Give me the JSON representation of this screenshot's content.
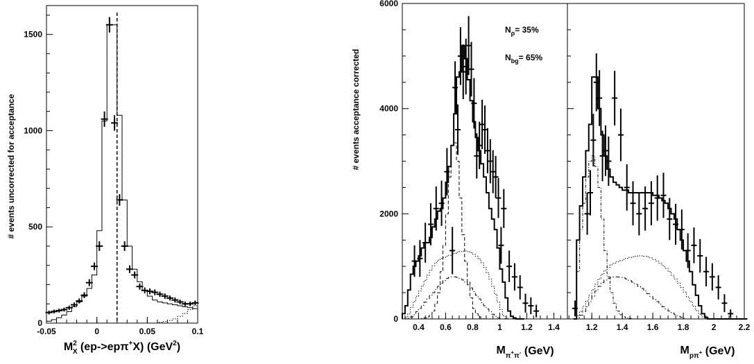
{
  "chart_data": [
    {
      "type": "histogram",
      "ylabel": "# events uncorrected for acceptance",
      "xlabel": {
        "base": "M",
        "sub": "X",
        "sup": "2",
        "process": " (ep->epπ",
        "process_sup": "+",
        "rest": "X) (GeV",
        "unit_sup": "2",
        "close": ")"
      },
      "xlim": [
        -0.05,
        0.1
      ],
      "ylim": [
        0,
        1650
      ],
      "xticks": [
        {
          "v": -0.05,
          "label": "-0.05"
        },
        {
          "v": 0,
          "label": "0"
        },
        {
          "v": 0.05,
          "label": "0.05"
        },
        {
          "v": 0.1,
          "label": "0.1"
        }
      ],
      "yticks": [
        {
          "v": 0,
          "label": "0"
        },
        {
          "v": 500,
          "label": "500"
        },
        {
          "v": 1000,
          "label": "1000"
        },
        {
          "v": 1500,
          "label": "1500"
        }
      ],
      "cut_line_x": 0.02,
      "series": [
        {
          "kind": "simulation",
          "style": "solid",
          "bin_edges": [
            -0.05,
            -0.045,
            -0.04,
            -0.035,
            -0.03,
            -0.025,
            -0.02,
            -0.015,
            -0.01,
            -0.005,
            0,
            0.005,
            0.01,
            0.015,
            0.02,
            0.025,
            0.03,
            0.035,
            0.04,
            0.045,
            0.05,
            0.055,
            0.06,
            0.065,
            0.07,
            0.075,
            0.08,
            0.085,
            0.09,
            0.095,
            0.1
          ],
          "values": [
            10,
            18,
            28,
            42,
            60,
            85,
            110,
            140,
            180,
            250,
            480,
            1050,
            1550,
            1550,
            1080,
            640,
            400,
            280,
            215,
            170,
            140,
            120,
            110,
            105,
            100,
            95,
            90,
            85,
            80,
            75
          ]
        },
        {
          "kind": "background",
          "style": "dotted",
          "bin_edges": [
            0.06,
            0.065,
            0.07,
            0.075,
            0.08,
            0.085,
            0.09,
            0.095,
            0.1
          ],
          "values": [
            4,
            8,
            14,
            22,
            35,
            50,
            70,
            90
          ]
        },
        {
          "kind": "data",
          "style": "points",
          "x": [
            -0.0475,
            -0.0425,
            -0.0375,
            -0.0325,
            -0.0275,
            -0.0225,
            -0.0175,
            -0.0125,
            -0.0075,
            -0.0025,
            0.0025,
            0.0075,
            0.0125,
            0.0175,
            0.0225,
            0.0275,
            0.0325,
            0.0375,
            0.0425,
            0.0475,
            0.0525,
            0.0575,
            0.0625,
            0.0675,
            0.0725,
            0.0775,
            0.0825,
            0.0875,
            0.0925,
            0.0975
          ],
          "y": [
            55,
            60,
            65,
            70,
            80,
            95,
            115,
            145,
            210,
            295,
            400,
            1060,
            1550,
            1040,
            640,
            400,
            280,
            250,
            190,
            170,
            165,
            160,
            150,
            140,
            130,
            120,
            110,
            100,
            100,
            105
          ],
          "yerr": [
            10,
            10,
            10,
            10,
            11,
            12,
            13,
            15,
            18,
            20,
            25,
            40,
            40,
            40,
            30,
            25,
            20,
            18,
            16,
            15,
            15,
            15,
            14,
            14,
            13,
            13,
            12,
            12,
            12,
            12
          ]
        }
      ]
    },
    {
      "type": "histogram",
      "ylabel": "# events acceptance corrected",
      "ylim": [
        0,
        6000
      ],
      "yticks": [
        {
          "v": 0,
          "label": "0"
        },
        {
          "v": 2000,
          "label": "2000"
        },
        {
          "v": 4000,
          "label": "4000"
        },
        {
          "v": 6000,
          "label": "6000"
        }
      ],
      "annotations": [
        {
          "base": "N",
          "sub": "ρ",
          "text": "= 35%"
        },
        {
          "base": "N",
          "sub": "bg",
          "text": "= 65%"
        }
      ],
      "panels": [
        {
          "xlabel": {
            "base": "M",
            "sub": "π",
            "sub2": "+",
            "sub3": "π",
            "sub4": "-",
            "rest": " (GeV)"
          },
          "xlim": [
            0.28,
            1.5
          ],
          "xticks": [
            {
              "v": 0.4,
              "label": "0.4"
            },
            {
              "v": 0.6,
              "label": "0.6"
            },
            {
              "v": 0.8,
              "label": "0.8"
            },
            {
              "v": 1.0,
              "label": "1"
            },
            {
              "v": 1.2,
              "label": "1.2"
            },
            {
              "v": 1.4,
              "label": "1.4"
            }
          ],
          "x_start": 0.28,
          "bin_width": 0.02,
          "total": [
            100,
            250,
            550,
            850,
            1000,
            1100,
            1200,
            1350,
            1450,
            1450,
            1550,
            1750,
            1900,
            2050,
            2100,
            2300,
            2600,
            2900,
            3300,
            3900,
            4600,
            4700,
            5200,
            4950,
            4550,
            4150,
            3750,
            3450,
            3200,
            2950,
            2700,
            2400,
            2100,
            1900,
            1700,
            1350,
            950,
            700,
            400,
            150,
            50,
            20,
            0,
            0,
            0
          ],
          "rho": [
            0,
            0,
            0,
            0,
            0,
            0,
            0,
            5,
            20,
            40,
            80,
            150,
            300,
            500,
            900,
            1400,
            2000,
            2700,
            3300,
            3350,
            3000,
            2300,
            1600,
            1100,
            700,
            400,
            200,
            100,
            40,
            10,
            0,
            0,
            0,
            0,
            0,
            0,
            0,
            0,
            0,
            0,
            0,
            0,
            0,
            0,
            0
          ],
          "bg1": [
            0,
            30,
            100,
            220,
            330,
            430,
            530,
            630,
            730,
            830,
            930,
            1010,
            1070,
            1120,
            1150,
            1170,
            1190,
            1210,
            1230,
            1250,
            1270,
            1280,
            1290,
            1290,
            1280,
            1260,
            1230,
            1190,
            1140,
            1070,
            980,
            880,
            760,
            620,
            470,
            320,
            180,
            60,
            10,
            0,
            0,
            0,
            0,
            0,
            0
          ],
          "bg2": [
            0,
            5,
            15,
            40,
            80,
            140,
            200,
            260,
            320,
            380,
            440,
            500,
            560,
            620,
            680,
            730,
            770,
            790,
            800,
            800,
            790,
            770,
            740,
            700,
            650,
            590,
            520,
            450,
            380,
            310,
            250,
            190,
            140,
            90,
            50,
            20,
            5,
            0,
            0,
            0,
            0,
            0,
            0,
            0,
            0
          ],
          "points_x": [
            0.37,
            0.41,
            0.45,
            0.49,
            0.53,
            0.57,
            0.61,
            0.65,
            0.67,
            0.69,
            0.71,
            0.73,
            0.75,
            0.77,
            0.79,
            0.81,
            0.83,
            0.85,
            0.87,
            0.89,
            0.91,
            0.93,
            0.95,
            0.97,
            0.99,
            1.01,
            1.03,
            1.07,
            1.11,
            1.15,
            1.19,
            1.23,
            1.27
          ],
          "points_y": [
            1100,
            1150,
            1450,
            1800,
            2100,
            2200,
            2800,
            1300,
            4400,
            3600,
            5000,
            4700,
            4800,
            5200,
            4750,
            4100,
            3100,
            3300,
            3700,
            3600,
            3200,
            3000,
            2800,
            2700,
            2300,
            1400,
            2100,
            1000,
            800,
            600,
            300,
            250,
            150
          ],
          "points_err": [
            300,
            350,
            380,
            400,
            420,
            430,
            450,
            450,
            500,
            480,
            550,
            520,
            530,
            560,
            520,
            480,
            430,
            450,
            470,
            460,
            430,
            420,
            410,
            400,
            380,
            350,
            370,
            300,
            260,
            230,
            180,
            160,
            120
          ]
        },
        {
          "xlabel": {
            "base": "M",
            "sub": "pπ",
            "sub2": "+",
            "rest": " (GeV)"
          },
          "xlim": [
            1.04,
            2.2
          ],
          "xticks": [
            {
              "v": 1.2,
              "label": "1.2"
            },
            {
              "v": 1.4,
              "label": "1.4"
            },
            {
              "v": 1.6,
              "label": "1.6"
            },
            {
              "v": 1.8,
              "label": "1.8"
            },
            {
              "v": 2.0,
              "label": "2"
            },
            {
              "v": 2.2,
              "label": "2.2"
            }
          ],
          "x_start": 1.08,
          "bin_width": 0.02,
          "total": [
            0,
            1500,
            2150,
            2700,
            3200,
            3700,
            4600,
            4600,
            4000,
            3500,
            3100,
            2850,
            2700,
            2600,
            2550,
            2500,
            2450,
            2450,
            2400,
            2400,
            2400,
            2400,
            2400,
            2400,
            2400,
            2400,
            2350,
            2350,
            2300,
            2250,
            2200,
            2100,
            2000,
            1900,
            1700,
            1500,
            1300,
            1100,
            900,
            650,
            450,
            250,
            100,
            30,
            0,
            0,
            0,
            0,
            0,
            0,
            0,
            0,
            0,
            0,
            0,
            0,
            0
          ],
          "delta": [
            0,
            900,
            1700,
            2200,
            2700,
            3000,
            3100,
            2900,
            2500,
            1900,
            1300,
            800,
            500,
            300,
            150,
            80,
            40,
            20,
            10,
            0,
            0,
            0,
            0,
            0,
            0,
            0,
            0,
            0,
            0,
            0,
            0,
            0,
            0,
            0,
            0,
            0,
            0,
            0,
            0,
            0,
            0,
            0,
            0,
            0,
            0,
            0,
            0,
            0,
            0,
            0,
            0,
            0,
            0,
            0,
            0,
            0,
            0
          ],
          "bg1": [
            0,
            60,
            140,
            240,
            340,
            450,
            560,
            660,
            760,
            850,
            920,
            980,
            1030,
            1060,
            1090,
            1110,
            1130,
            1150,
            1170,
            1180,
            1190,
            1200,
            1200,
            1190,
            1180,
            1160,
            1130,
            1100,
            1060,
            1010,
            960,
            900,
            830,
            760,
            680,
            600,
            510,
            420,
            330,
            240,
            160,
            90,
            40,
            10,
            0,
            0,
            0,
            0,
            0,
            0,
            0,
            0,
            0,
            0,
            0,
            0,
            0
          ],
          "bg2": [
            0,
            20,
            70,
            140,
            230,
            330,
            430,
            530,
            620,
            690,
            740,
            770,
            790,
            800,
            800,
            790,
            780,
            760,
            730,
            700,
            660,
            620,
            580,
            530,
            480,
            430,
            380,
            330,
            280,
            230,
            190,
            150,
            110,
            80,
            50,
            30,
            10,
            0,
            0,
            0,
            0,
            0,
            0,
            0,
            0,
            0,
            0,
            0,
            0,
            0,
            0,
            0,
            0,
            0,
            0,
            0,
            0
          ],
          "points_x": [
            1.09,
            1.17,
            1.19,
            1.21,
            1.23,
            1.25,
            1.27,
            1.29,
            1.31,
            1.35,
            1.39,
            1.43,
            1.47,
            1.51,
            1.55,
            1.59,
            1.63,
            1.67,
            1.71,
            1.75,
            1.79,
            1.83,
            1.87,
            1.91,
            1.95,
            1.99,
            2.03,
            2.07,
            2.11
          ],
          "points_y": [
            200,
            2000,
            2400,
            3400,
            4500,
            4200,
            3100,
            3200,
            3000,
            4200,
            3500,
            2500,
            2200,
            2000,
            2100,
            2200,
            2300,
            2350,
            1900,
            1800,
            1700,
            1300,
            1400,
            1200,
            900,
            800,
            600,
            300,
            100
          ],
          "points_err": [
            150,
            400,
            430,
            500,
            550,
            530,
            480,
            480,
            470,
            520,
            500,
            440,
            420,
            410,
            420,
            420,
            430,
            430,
            400,
            390,
            380,
            330,
            340,
            320,
            280,
            260,
            230,
            170,
            80
          ]
        }
      ]
    }
  ]
}
